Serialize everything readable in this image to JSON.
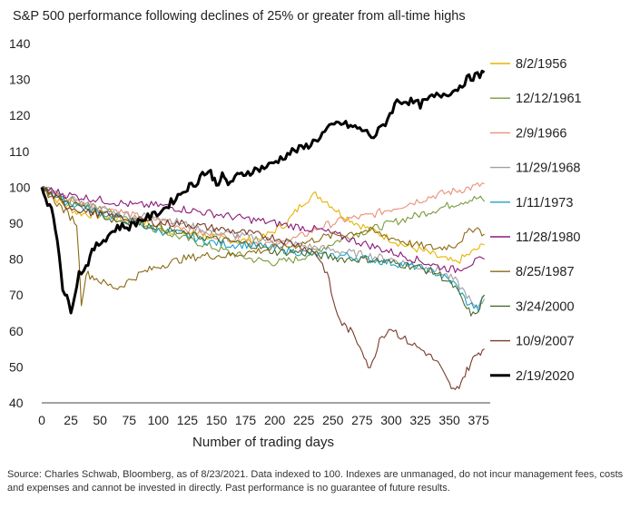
{
  "chart_data": {
    "type": "line",
    "title": "S&P 500 performance following declines of 25% or greater from all-time highs",
    "xlabel": "Number of trading days",
    "ylabel": "",
    "xlim": [
      0,
      385
    ],
    "ylim": [
      40,
      140
    ],
    "xticks": [
      0,
      25,
      50,
      75,
      100,
      125,
      150,
      175,
      200,
      225,
      250,
      275,
      300,
      325,
      350,
      375
    ],
    "yticks": [
      40,
      50,
      60,
      70,
      80,
      90,
      100,
      110,
      120,
      130,
      140
    ],
    "grid": false,
    "legend_position": "right",
    "series": [
      {
        "name": "8/2/1956",
        "color": "#E8B400",
        "points": [
          [
            0,
            100
          ],
          [
            15,
            96
          ],
          [
            30,
            93
          ],
          [
            50,
            92
          ],
          [
            70,
            91
          ],
          [
            90,
            90
          ],
          [
            110,
            88
          ],
          [
            130,
            87
          ],
          [
            150,
            86
          ],
          [
            170,
            85
          ],
          [
            190,
            86
          ],
          [
            210,
            90
          ],
          [
            225,
            96
          ],
          [
            235,
            98
          ],
          [
            245,
            96
          ],
          [
            255,
            93
          ],
          [
            270,
            90
          ],
          [
            290,
            87
          ],
          [
            310,
            84
          ],
          [
            330,
            82
          ],
          [
            345,
            80
          ],
          [
            355,
            79
          ],
          [
            365,
            81
          ],
          [
            375,
            83
          ],
          [
            380,
            84
          ]
        ]
      },
      {
        "name": "12/12/1961",
        "color": "#7A9A3A",
        "points": [
          [
            0,
            100
          ],
          [
            20,
            97
          ],
          [
            40,
            95
          ],
          [
            60,
            93
          ],
          [
            80,
            91
          ],
          [
            100,
            88
          ],
          [
            120,
            86
          ],
          [
            140,
            84
          ],
          [
            160,
            82
          ],
          [
            180,
            80
          ],
          [
            200,
            79
          ],
          [
            220,
            80
          ],
          [
            240,
            83
          ],
          [
            260,
            86
          ],
          [
            280,
            88
          ],
          [
            300,
            90
          ],
          [
            320,
            92
          ],
          [
            340,
            94
          ],
          [
            360,
            96
          ],
          [
            375,
            97
          ],
          [
            380,
            96
          ]
        ]
      },
      {
        "name": "2/9/1966",
        "color": "#E8917A",
        "points": [
          [
            0,
            100
          ],
          [
            20,
            97
          ],
          [
            40,
            95
          ],
          [
            60,
            94
          ],
          [
            80,
            92
          ],
          [
            100,
            91
          ],
          [
            120,
            89
          ],
          [
            140,
            87
          ],
          [
            160,
            86
          ],
          [
            180,
            85
          ],
          [
            200,
            84
          ],
          [
            220,
            86
          ],
          [
            240,
            89
          ],
          [
            260,
            91
          ],
          [
            280,
            92
          ],
          [
            300,
            94
          ],
          [
            320,
            96
          ],
          [
            340,
            98
          ],
          [
            355,
            99
          ],
          [
            370,
            100
          ],
          [
            380,
            101
          ]
        ]
      },
      {
        "name": "11/29/1968",
        "color": "#A0A0A0",
        "points": [
          [
            0,
            100
          ],
          [
            20,
            97
          ],
          [
            40,
            95
          ],
          [
            60,
            93
          ],
          [
            80,
            92
          ],
          [
            100,
            92
          ],
          [
            120,
            90
          ],
          [
            140,
            88
          ],
          [
            160,
            87
          ],
          [
            180,
            86
          ],
          [
            200,
            85
          ],
          [
            220,
            84
          ],
          [
            240,
            83
          ],
          [
            260,
            82
          ],
          [
            280,
            81
          ],
          [
            300,
            80
          ],
          [
            320,
            78
          ],
          [
            340,
            77
          ],
          [
            355,
            74
          ],
          [
            365,
            70
          ],
          [
            372,
            66
          ],
          [
            380,
            69
          ]
        ]
      },
      {
        "name": "1/11/1973",
        "color": "#1DA1C8",
        "points": [
          [
            0,
            100
          ],
          [
            20,
            96
          ],
          [
            40,
            94
          ],
          [
            60,
            92
          ],
          [
            80,
            90
          ],
          [
            100,
            88
          ],
          [
            120,
            87
          ],
          [
            140,
            85
          ],
          [
            160,
            84
          ],
          [
            180,
            84
          ],
          [
            200,
            83
          ],
          [
            220,
            82
          ],
          [
            240,
            81
          ],
          [
            260,
            81
          ],
          [
            280,
            80
          ],
          [
            300,
            79
          ],
          [
            320,
            78
          ],
          [
            340,
            76
          ],
          [
            355,
            73
          ],
          [
            365,
            68
          ],
          [
            375,
            66
          ],
          [
            380,
            70
          ]
        ]
      },
      {
        "name": "11/28/1980",
        "color": "#8B1A7A",
        "points": [
          [
            0,
            100
          ],
          [
            20,
            98
          ],
          [
            40,
            97
          ],
          [
            60,
            96
          ],
          [
            80,
            95
          ],
          [
            100,
            95
          ],
          [
            120,
            94
          ],
          [
            140,
            93
          ],
          [
            160,
            92
          ],
          [
            180,
            91
          ],
          [
            200,
            90
          ],
          [
            220,
            89
          ],
          [
            240,
            88
          ],
          [
            260,
            86
          ],
          [
            280,
            84
          ],
          [
            300,
            82
          ],
          [
            320,
            80
          ],
          [
            340,
            78
          ],
          [
            355,
            77
          ],
          [
            370,
            79
          ],
          [
            380,
            80
          ]
        ]
      },
      {
        "name": "8/25/1987",
        "color": "#8B6914",
        "points": [
          [
            0,
            100
          ],
          [
            15,
            95
          ],
          [
            30,
            90
          ],
          [
            34,
            68
          ],
          [
            38,
            76
          ],
          [
            45,
            75
          ],
          [
            55,
            73
          ],
          [
            65,
            72
          ],
          [
            75,
            74
          ],
          [
            85,
            76
          ],
          [
            100,
            78
          ],
          [
            120,
            80
          ],
          [
            140,
            81
          ],
          [
            160,
            81
          ],
          [
            180,
            82
          ],
          [
            200,
            83
          ],
          [
            220,
            84
          ],
          [
            240,
            86
          ],
          [
            260,
            87
          ],
          [
            280,
            88
          ],
          [
            300,
            86
          ],
          [
            320,
            84
          ],
          [
            340,
            83
          ],
          [
            355,
            84
          ],
          [
            365,
            87
          ],
          [
            372,
            89
          ],
          [
            380,
            87
          ]
        ]
      },
      {
        "name": "3/24/2000",
        "color": "#4A6B2A",
        "points": [
          [
            0,
            100
          ],
          [
            20,
            96
          ],
          [
            40,
            94
          ],
          [
            60,
            91
          ],
          [
            80,
            90
          ],
          [
            100,
            89
          ],
          [
            120,
            87
          ],
          [
            140,
            86
          ],
          [
            160,
            85
          ],
          [
            180,
            84
          ],
          [
            200,
            82
          ],
          [
            220,
            82
          ],
          [
            240,
            81
          ],
          [
            260,
            80
          ],
          [
            280,
            80
          ],
          [
            300,
            79
          ],
          [
            320,
            78
          ],
          [
            340,
            76
          ],
          [
            355,
            72
          ],
          [
            365,
            66
          ],
          [
            372,
            64
          ],
          [
            380,
            70
          ]
        ]
      },
      {
        "name": "10/9/2007",
        "color": "#7A3A2A",
        "points": [
          [
            0,
            100
          ],
          [
            20,
            95
          ],
          [
            40,
            93
          ],
          [
            60,
            92
          ],
          [
            80,
            91
          ],
          [
            100,
            90
          ],
          [
            120,
            90
          ],
          [
            140,
            89
          ],
          [
            160,
            88
          ],
          [
            180,
            87
          ],
          [
            200,
            86
          ],
          [
            220,
            84
          ],
          [
            235,
            82
          ],
          [
            245,
            76
          ],
          [
            252,
            66
          ],
          [
            258,
            62
          ],
          [
            265,
            60
          ],
          [
            275,
            55
          ],
          [
            282,
            49
          ],
          [
            290,
            58
          ],
          [
            300,
            61
          ],
          [
            310,
            58
          ],
          [
            320,
            56
          ],
          [
            330,
            54
          ],
          [
            340,
            51
          ],
          [
            350,
            45
          ],
          [
            355,
            43
          ],
          [
            360,
            46
          ],
          [
            365,
            49
          ],
          [
            370,
            52
          ],
          [
            375,
            54
          ],
          [
            380,
            55
          ]
        ]
      },
      {
        "name": "2/19/2020",
        "color": "#000000",
        "points": [
          [
            0,
            100
          ],
          [
            5,
            96
          ],
          [
            10,
            92
          ],
          [
            15,
            82
          ],
          [
            18,
            72
          ],
          [
            20,
            70
          ],
          [
            23,
            68
          ],
          [
            25,
            66
          ],
          [
            28,
            70
          ],
          [
            32,
            76
          ],
          [
            38,
            78
          ],
          [
            45,
            83
          ],
          [
            55,
            86
          ],
          [
            65,
            89
          ],
          [
            75,
            89
          ],
          [
            85,
            91
          ],
          [
            95,
            92
          ],
          [
            105,
            94
          ],
          [
            115,
            97
          ],
          [
            125,
            100
          ],
          [
            132,
            101
          ],
          [
            138,
            104
          ],
          [
            145,
            104
          ],
          [
            150,
            101
          ],
          [
            155,
            103
          ],
          [
            160,
            101
          ],
          [
            168,
            103
          ],
          [
            175,
            104
          ],
          [
            185,
            105
          ],
          [
            195,
            106
          ],
          [
            205,
            108
          ],
          [
            215,
            110
          ],
          [
            225,
            111
          ],
          [
            235,
            113
          ],
          [
            245,
            116
          ],
          [
            255,
            118
          ],
          [
            265,
            117
          ],
          [
            275,
            116
          ],
          [
            285,
            114
          ],
          [
            295,
            118
          ],
          [
            305,
            124
          ],
          [
            315,
            124
          ],
          [
            325,
            123
          ],
          [
            335,
            125
          ],
          [
            345,
            126
          ],
          [
            355,
            127
          ],
          [
            365,
            130
          ],
          [
            372,
            131
          ],
          [
            376,
            131
          ],
          [
            380,
            132
          ]
        ]
      }
    ]
  },
  "source_note": "Source: Charles Schwab, Bloomberg, as of 8/23/2021. Data indexed to 100. Indexes are unmanaged, do not incur management fees, costs and expenses and cannot be invested in directly. Past performance is no guarantee of future results."
}
